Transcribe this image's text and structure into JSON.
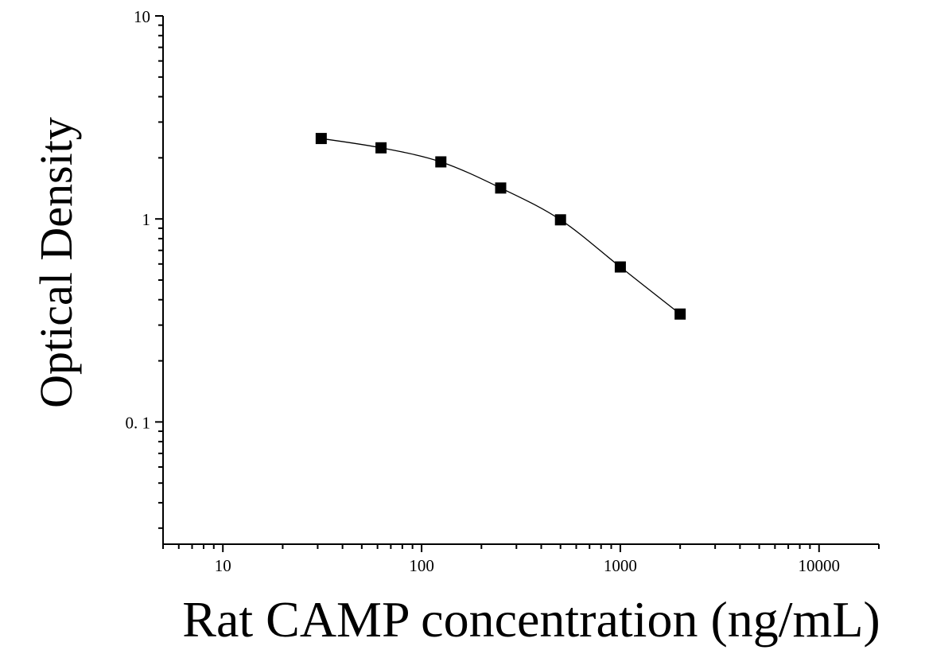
{
  "chart_data": {
    "type": "scatter",
    "title": "",
    "xlabel": "Rat CAMP concentration (ng/mL)",
    "ylabel": "Optical Density",
    "x_scale": "log",
    "y_scale": "log",
    "xlim": [
      5,
      20000
    ],
    "ylim": [
      0.025,
      10
    ],
    "x_tick_labels": [
      "10",
      "100",
      "1000",
      "10000"
    ],
    "x_tick_values": [
      10,
      100,
      1000,
      10000
    ],
    "y_tick_labels": [
      "0. 1",
      "1",
      "10"
    ],
    "y_tick_values": [
      0.1,
      1,
      10
    ],
    "grid": false,
    "legend": "none",
    "series": [
      {
        "marker": "square",
        "fit_line": "smooth",
        "color": "#000000",
        "x": [
          31.25,
          62.5,
          125,
          250,
          500,
          1000,
          2000
        ],
        "y": [
          2.49,
          2.24,
          1.91,
          1.42,
          0.99,
          0.58,
          0.34
        ]
      }
    ]
  }
}
